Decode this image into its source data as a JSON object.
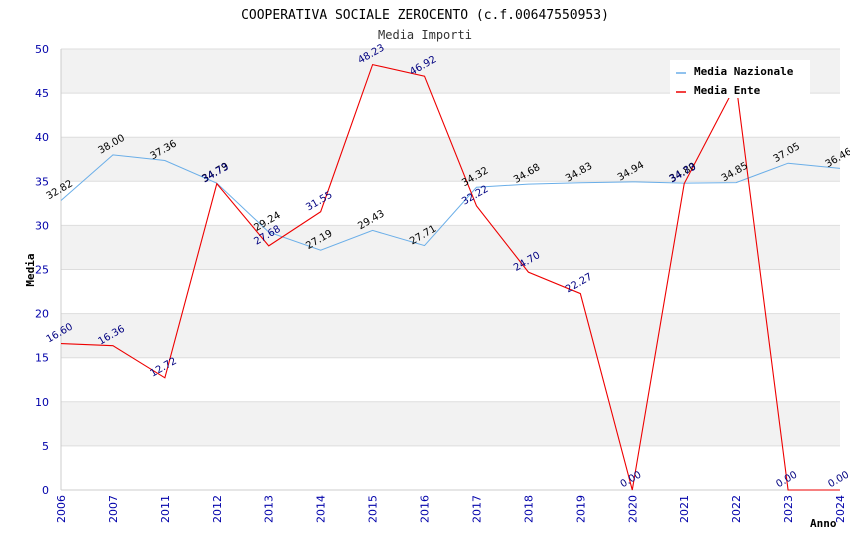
{
  "chart_data": {
    "type": "line",
    "title": "COOPERATIVA SOCIALE ZEROCENTO (c.f.00647550953)",
    "subtitle": "Media Importi",
    "xlabel": "Anno",
    "ylabel": "Media",
    "ylim": [
      0,
      50
    ],
    "yticks": [
      0,
      5,
      10,
      15,
      20,
      25,
      30,
      35,
      40,
      45,
      50
    ],
    "categories": [
      "2006",
      "2007",
      "2011",
      "2012",
      "2013",
      "2014",
      "2015",
      "2016",
      "2017",
      "2018",
      "2019",
      "2020",
      "2021",
      "2022",
      "2023",
      "2024"
    ],
    "series": [
      {
        "name": "Media Nazionale",
        "color": "#6aaee8",
        "values": [
          32.82,
          38.0,
          37.36,
          34.79,
          29.24,
          27.19,
          29.43,
          27.71,
          34.32,
          34.68,
          34.83,
          34.94,
          34.8,
          34.85,
          37.05,
          36.46
        ],
        "labels": [
          "32.82",
          "38.00",
          "37.36",
          "34.79",
          "29.24",
          "27.19",
          "29.43",
          "27.71",
          "34.32",
          "34.68",
          "34.83",
          "34.94",
          "34.80",
          "34.85",
          "37.05",
          "36.46"
        ]
      },
      {
        "name": "Media Ente",
        "color": "#ee0000",
        "values": [
          16.6,
          16.36,
          12.72,
          34.73,
          27.68,
          31.55,
          48.23,
          46.92,
          32.22,
          24.7,
          22.27,
          0.0,
          34.73,
          46.0,
          0.0,
          0.0
        ],
        "labels": [
          "16.60",
          "16.36",
          "12.72",
          "34.73",
          "27.68",
          "31.55",
          "48.23",
          "46.92",
          "32.22",
          "24.70",
          "22.27",
          "0.00",
          "34.73",
          "",
          "0.00",
          "0.00"
        ]
      }
    ],
    "legend": "top-right",
    "grid": true
  }
}
